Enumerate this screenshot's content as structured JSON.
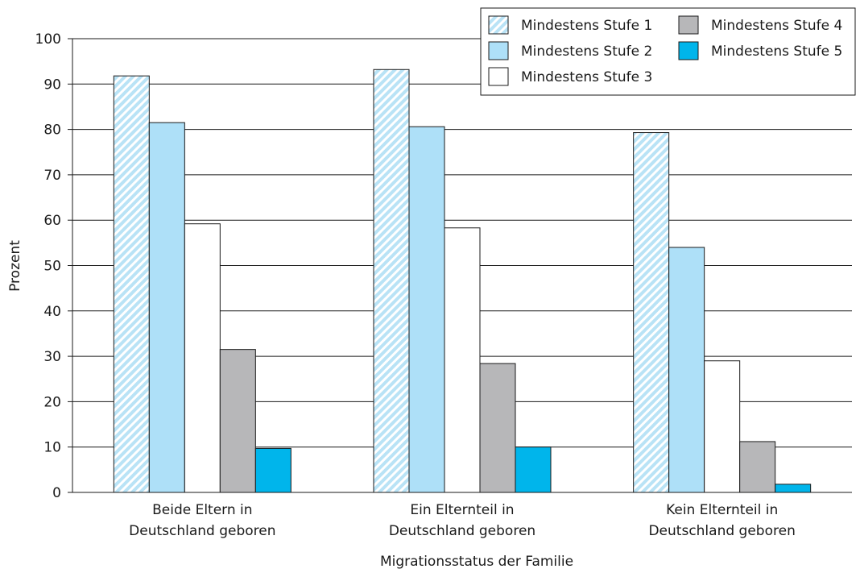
{
  "chart_data": {
    "type": "bar",
    "title": "",
    "xlabel": "Migrationsstatus der Familie",
    "ylabel": "Prozent",
    "ylim": [
      0,
      100
    ],
    "yticks": [
      0,
      10,
      20,
      30,
      40,
      50,
      60,
      70,
      80,
      90,
      100
    ],
    "grid": true,
    "legend_position": "top-right",
    "categories": [
      [
        "Beide Eltern in",
        "Deutschland geboren"
      ],
      [
        "Ein Elternteil in",
        "Deutschland geboren"
      ],
      [
        "Kein Elternteil in",
        "Deutschland geboren"
      ]
    ],
    "series": [
      {
        "name": "Mindestens Stufe 1",
        "values": [
          91.8,
          93.2,
          79.3
        ],
        "color": "#c6e9f7",
        "pattern": "hatched"
      },
      {
        "name": "Mindestens Stufe 2",
        "values": [
          81.5,
          80.6,
          54.0
        ],
        "color": "#aee0f8"
      },
      {
        "name": "Mindestens Stufe 3",
        "values": [
          59.2,
          58.3,
          29.0
        ],
        "color": "#ffffff"
      },
      {
        "name": "Mindestens Stufe 4",
        "values": [
          31.5,
          28.4,
          11.2
        ],
        "color": "#b7b7b9"
      },
      {
        "name": "Mindestens Stufe 5",
        "values": [
          9.7,
          10.0,
          1.8
        ],
        "color": "#00b5eb"
      }
    ]
  }
}
